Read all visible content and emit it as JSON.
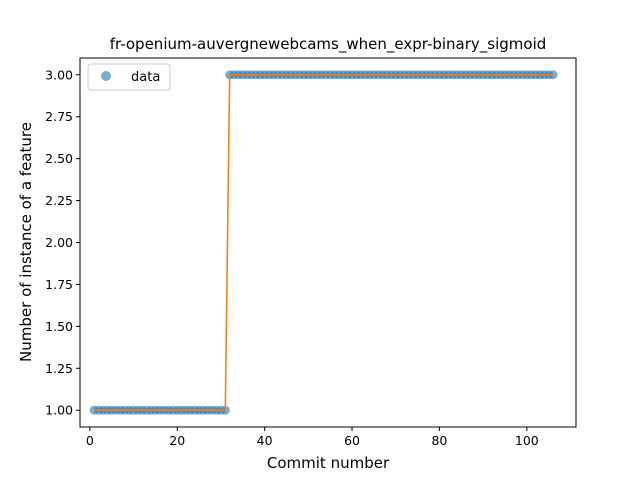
{
  "chart_data": {
    "type": "scatter",
    "title": "fr-openium-auvergnewebcams_when_expr-binary_sigmoid",
    "xlabel": "Commit number",
    "ylabel": "Number of instance of a feature",
    "xlim": [
      -2.25,
      111.25
    ],
    "ylim": [
      0.9,
      3.1
    ],
    "xticks": [
      0,
      20,
      40,
      60,
      80,
      100
    ],
    "yticks": [
      1.0,
      1.25,
      1.5,
      1.75,
      2.0,
      2.25,
      2.5,
      2.75,
      3.0
    ],
    "xtick_labels": [
      "0",
      "20",
      "40",
      "60",
      "80",
      "100"
    ],
    "ytick_labels": [
      "1.00",
      "1.25",
      "1.50",
      "1.75",
      "2.00",
      "2.25",
      "2.50",
      "2.75",
      "3.00"
    ],
    "legend": {
      "position": "top-left",
      "entries": [
        "data"
      ]
    },
    "grid": false,
    "series": [
      {
        "name": "data",
        "style": "markers",
        "x_range": [
          1,
          106
        ],
        "segments": [
          {
            "x_from": 1,
            "x_to": 31,
            "y": 1.0
          },
          {
            "x_from": 32,
            "x_to": 106,
            "y": 3.0
          }
        ]
      },
      {
        "style": "line",
        "segments": [
          {
            "x_from": 1,
            "x_to": 31,
            "y": 1.0
          },
          {
            "x_from": 32,
            "x_to": 106,
            "y": 3.0
          }
        ]
      }
    ],
    "colors": {
      "markers": "#1f77b4",
      "line": "#ff7f0e"
    }
  }
}
